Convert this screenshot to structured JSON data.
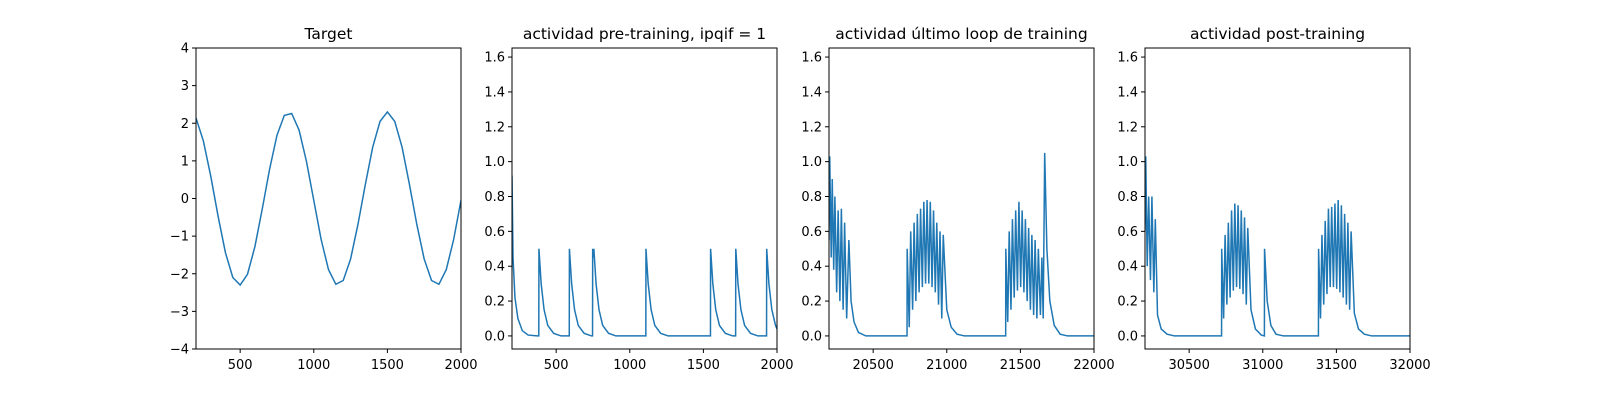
{
  "chart_data": [
    {
      "type": "line",
      "title": "Target",
      "color": "#1f77b4",
      "xlim": [
        200,
        2000
      ],
      "ylim": [
        -4,
        4
      ],
      "xticks": [
        500,
        1000,
        1500,
        2000
      ],
      "yticks": [
        {
          "value": -4,
          "label": "−4"
        },
        {
          "value": -3,
          "label": "−3"
        },
        {
          "value": -2,
          "label": "−2"
        },
        {
          "value": -1,
          "label": "−1"
        },
        0,
        1,
        2,
        3,
        4
      ],
      "x": [
        200,
        250,
        300,
        350,
        400,
        450,
        500,
        550,
        600,
        650,
        700,
        750,
        800,
        850,
        900,
        950,
        1000,
        1050,
        1100,
        1150,
        1200,
        1250,
        1300,
        1350,
        1400,
        1450,
        1500,
        1550,
        1600,
        1650,
        1700,
        1750,
        1800,
        1850,
        1900,
        1950,
        2000
      ],
      "values": [
        2.14,
        1.53,
        0.6,
        -0.47,
        -1.44,
        -2.1,
        -2.3,
        -2.01,
        -1.28,
        -0.28,
        0.78,
        1.68,
        2.21,
        2.26,
        1.82,
        0.99,
        -0.05,
        -1.09,
        -1.89,
        -2.28,
        -2.18,
        -1.61,
        -0.69,
        0.37,
        1.36,
        2.05,
        2.3,
        2.05,
        1.36,
        0.37,
        -0.69,
        -1.61,
        -2.18,
        -2.28,
        -1.89,
        -1.09,
        -0.05
      ]
    },
    {
      "type": "line",
      "title": "actividad pre-training, ipqif = 1",
      "color": "#1f77b4",
      "xlim": [
        200,
        2000
      ],
      "ylim": [
        -0.075,
        1.652
      ],
      "xticks": [
        500,
        1000,
        1500,
        2000
      ],
      "yticks": [
        {
          "value": 0,
          "label": "0.0"
        },
        0.2,
        0.4,
        0.6,
        0.8,
        {
          "value": 1,
          "label": "1.0"
        },
        1.2,
        1.4,
        1.6
      ],
      "x": [
        200,
        207,
        220,
        240,
        270,
        310,
        370,
        382,
        383,
        398,
        418,
        443,
        483,
        533,
        589,
        590,
        605,
        625,
        650,
        690,
        740,
        747,
        748,
        755,
        756,
        771,
        791,
        816,
        856,
        906,
        1109,
        1110,
        1125,
        1145,
        1170,
        1210,
        1260,
        1548,
        1549,
        1564,
        1584,
        1609,
        1649,
        1699,
        1719,
        1720,
        1735,
        1755,
        1780,
        1820,
        1870,
        1929,
        1930,
        1945,
        1965,
        1990,
        2000
      ],
      "values": [
        0.92,
        0.45,
        0.22,
        0.1,
        0.03,
        0.005,
        0,
        0,
        0.5,
        0.3,
        0.15,
        0.06,
        0.015,
        0,
        0,
        0.5,
        0.3,
        0.15,
        0.06,
        0.015,
        0,
        0,
        0.5,
        0.45,
        0.5,
        0.3,
        0.15,
        0.06,
        0.015,
        0,
        0,
        0.5,
        0.3,
        0.15,
        0.06,
        0.015,
        0,
        0,
        0.5,
        0.3,
        0.15,
        0.06,
        0.015,
        0,
        0,
        0.5,
        0.3,
        0.15,
        0.06,
        0.015,
        0,
        0,
        0.5,
        0.3,
        0.15,
        0.06,
        0.04
      ]
    },
    {
      "type": "line",
      "title": "actividad último loop de training",
      "color": "#1f77b4",
      "xlim": [
        20200,
        22000
      ],
      "ylim": [
        -0.075,
        1.652
      ],
      "xticks": [
        20500,
        21000,
        21500,
        22000
      ],
      "yticks": [
        {
          "value": 0,
          "label": "0.0"
        },
        0.2,
        0.4,
        0.6,
        0.8,
        {
          "value": 1,
          "label": "1.0"
        },
        1.2,
        1.4,
        1.6
      ],
      "x": [
        20200,
        20205,
        20215,
        20222,
        20232,
        20240,
        20252,
        20262,
        20274,
        20284,
        20296,
        20306,
        20320,
        20335,
        20350,
        20370,
        20400,
        20450,
        20730,
        20731,
        20745,
        20755,
        20768,
        20778,
        20790,
        20800,
        20812,
        20822,
        20834,
        20844,
        20856,
        20866,
        20878,
        20888,
        20900,
        20910,
        20922,
        20932,
        20944,
        20954,
        20966,
        20976,
        21000,
        21030,
        21070,
        21120,
        21400,
        21401,
        21414,
        21424,
        21436,
        21446,
        21458,
        21468,
        21480,
        21490,
        21502,
        21512,
        21524,
        21534,
        21546,
        21556,
        21568,
        21578,
        21590,
        21600,
        21612,
        21622,
        21636,
        21646,
        21655,
        21665,
        21680,
        21700,
        21730,
        21770,
        21820,
        22000
      ],
      "values": [
        0.55,
        1.03,
        0.45,
        0.9,
        0.38,
        0.8,
        0.25,
        0.72,
        0.2,
        0.73,
        0.15,
        0.65,
        0.1,
        0.55,
        0.2,
        0.08,
        0.02,
        0,
        0,
        0.5,
        0.05,
        0.6,
        0.15,
        0.65,
        0.2,
        0.7,
        0.25,
        0.73,
        0.28,
        0.77,
        0.3,
        0.78,
        0.3,
        0.77,
        0.28,
        0.72,
        0.25,
        0.65,
        0.18,
        0.6,
        0.1,
        0.58,
        0.15,
        0.05,
        0.01,
        0,
        0,
        0.5,
        0.08,
        0.6,
        0.15,
        0.67,
        0.22,
        0.72,
        0.26,
        0.77,
        0.28,
        0.72,
        0.25,
        0.67,
        0.2,
        0.62,
        0.15,
        0.58,
        0.12,
        0.55,
        0.1,
        0.5,
        0.12,
        0.45,
        0.1,
        1.05,
        0.5,
        0.2,
        0.06,
        0.01,
        0,
        0
      ]
    },
    {
      "type": "line",
      "title": "actividad post-training",
      "color": "#1f77b4",
      "xlim": [
        30200,
        32000
      ],
      "ylim": [
        -0.075,
        1.652
      ],
      "xticks": [
        30500,
        31000,
        31500,
        32000
      ],
      "yticks": [
        {
          "value": 0,
          "label": "0.0"
        },
        0.2,
        0.4,
        0.6,
        0.8,
        {
          "value": 1,
          "label": "1.0"
        },
        1.2,
        1.4,
        1.6
      ],
      "x": [
        30200,
        30205,
        30215,
        30225,
        30237,
        30247,
        30260,
        30270,
        30285,
        30310,
        30350,
        30400,
        30720,
        30721,
        30734,
        30744,
        30756,
        30766,
        30778,
        30788,
        30800,
        30810,
        30822,
        30832,
        30844,
        30854,
        30866,
        30876,
        30888,
        30898,
        30920,
        30950,
        30990,
        31011,
        31012,
        31030,
        31055,
        31090,
        31140,
        31378,
        31379,
        31392,
        31402,
        31414,
        31424,
        31436,
        31446,
        31458,
        31468,
        31480,
        31490,
        31502,
        31512,
        31524,
        31534,
        31546,
        31556,
        31568,
        31578,
        31590,
        31600,
        31622,
        31650,
        31690,
        31740,
        32000
      ],
      "values": [
        0.6,
        1.03,
        0.4,
        0.8,
        0.32,
        0.8,
        0.25,
        0.67,
        0.12,
        0.04,
        0.01,
        0,
        0,
        0.5,
        0.1,
        0.58,
        0.18,
        0.65,
        0.22,
        0.72,
        0.26,
        0.76,
        0.28,
        0.75,
        0.27,
        0.72,
        0.24,
        0.68,
        0.18,
        0.62,
        0.15,
        0.04,
        0.005,
        0,
        0.5,
        0.2,
        0.06,
        0.01,
        0,
        0,
        0.5,
        0.1,
        0.58,
        0.18,
        0.66,
        0.24,
        0.73,
        0.28,
        0.74,
        0.28,
        0.76,
        0.27,
        0.78,
        0.25,
        0.75,
        0.22,
        0.7,
        0.18,
        0.65,
        0.15,
        0.6,
        0.13,
        0.04,
        0.01,
        0,
        0
      ]
    }
  ]
}
